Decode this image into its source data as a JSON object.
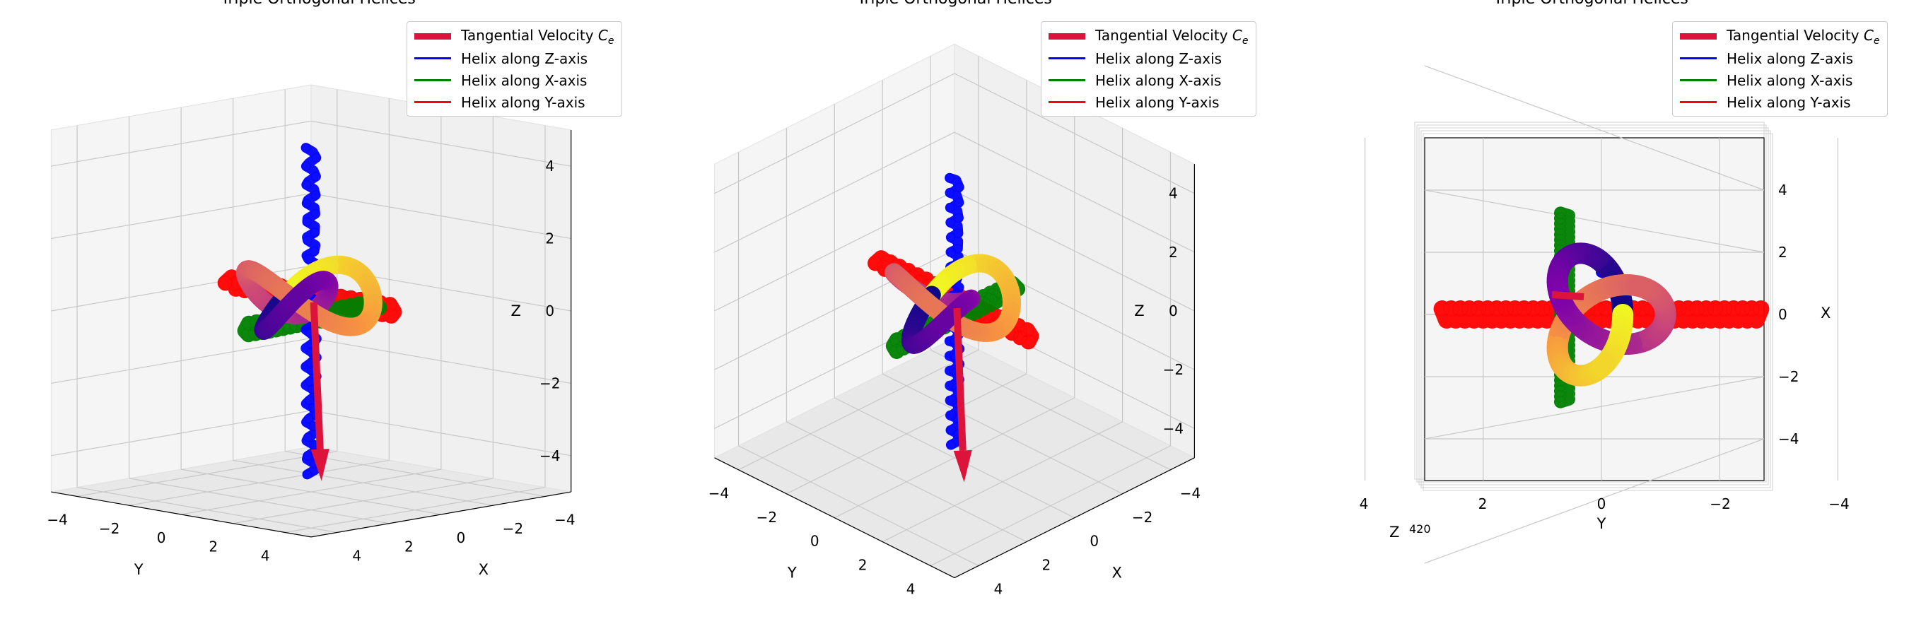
{
  "colors": {
    "blue": "#0000ff",
    "green": "#008000",
    "red": "#ff0000",
    "arrow": "#dc143c",
    "pane_left": "#f0f0f0",
    "pane_right": "#f5f5f5",
    "pane_floor": "#e8e8e8",
    "grid": "#c8c8c8"
  },
  "chart_data": [
    {
      "type": "3d-tube-plot",
      "title": "Triple Orthogonal Helices",
      "view": {
        "elev": 10,
        "azim": 45
      },
      "xlabel": "X",
      "ylabel": "Y",
      "zlabel": "Z",
      "xlim": [
        -5,
        5
      ],
      "ylim": [
        -5,
        5
      ],
      "zlim": [
        -5,
        5
      ],
      "x_ticks": [
        "−4",
        "−2",
        "0",
        "2",
        "4"
      ],
      "y_ticks": [
        "−4",
        "−2",
        "0",
        "2",
        "4"
      ],
      "z_ticks": [
        "−4",
        "−2",
        "0",
        "2",
        "4"
      ],
      "grid": true,
      "legend_position": "top-right",
      "legend": [
        {
          "label": "Tangential Velocity",
          "label_sub": "e",
          "label_sym": "C",
          "color": "#dc143c",
          "style": "arrow"
        },
        {
          "label": "Helix along Z-axis",
          "color": "#0000ff",
          "style": "line"
        },
        {
          "label": "Helix along X-axis",
          "color": "#008000",
          "style": "line"
        },
        {
          "label": "Helix along Y-axis",
          "color": "#ff0000",
          "style": "line"
        }
      ]
    },
    {
      "type": "3d-tube-plot",
      "title": "Triple Orthogonal Helices",
      "view": {
        "elev": 30,
        "azim": 45
      },
      "xlabel": "X",
      "ylabel": "Y",
      "zlabel": "Z",
      "xlim": [
        -5,
        5
      ],
      "ylim": [
        -5,
        5
      ],
      "zlim": [
        -5,
        5
      ],
      "x_ticks": [
        "−4",
        "−2",
        "0",
        "2",
        "4"
      ],
      "y_ticks": [
        "−4",
        "−2",
        "0",
        "2",
        "4"
      ],
      "z_ticks": [
        "−4",
        "−2",
        "0",
        "2",
        "4"
      ],
      "grid": true,
      "legend_position": "top-right",
      "legend": [
        {
          "label": "Tangential Velocity",
          "label_sub": "e",
          "label_sym": "C",
          "color": "#dc143c",
          "style": "arrow"
        },
        {
          "label": "Helix along Z-axis",
          "color": "#0000ff",
          "style": "line"
        },
        {
          "label": "Helix along X-axis",
          "color": "#008000",
          "style": "line"
        },
        {
          "label": "Helix along Y-axis",
          "color": "#ff0000",
          "style": "line"
        }
      ]
    },
    {
      "type": "3d-tube-plot",
      "title": "Triple Orthogonal Helices",
      "view": {
        "elev": 90,
        "azim": 90
      },
      "xlabel": "X",
      "ylabel": "Y",
      "zlabel": "Z",
      "xlim": [
        -5,
        5
      ],
      "ylim": [
        -5,
        5
      ],
      "zlim": [
        -5,
        5
      ],
      "x_ticks": [
        "4",
        "2",
        "0",
        "−2",
        "−4"
      ],
      "y_ticks": [
        "4",
        "2",
        "0",
        "−2",
        "−4"
      ],
      "z_ticks": [
        "4",
        "2",
        "0",
        "−2",
        "−4"
      ],
      "grid": true,
      "legend_position": "top-right",
      "legend": [
        {
          "label": "Tangential Velocity",
          "label_sub": "e",
          "label_sym": "C",
          "color": "#dc143c",
          "style": "arrow"
        },
        {
          "label": "Helix along Z-axis",
          "color": "#0000ff",
          "style": "line"
        },
        {
          "label": "Helix along X-axis",
          "color": "#008000",
          "style": "line"
        },
        {
          "label": "Helix along Y-axis",
          "color": "#ff0000",
          "style": "line"
        }
      ]
    }
  ]
}
